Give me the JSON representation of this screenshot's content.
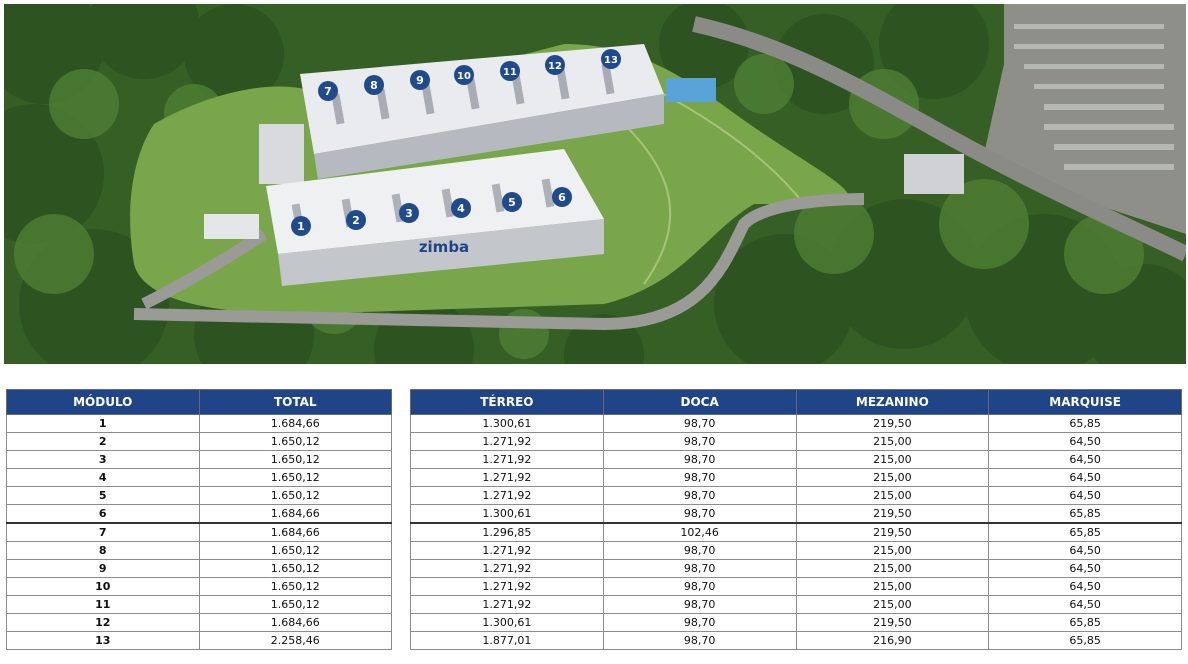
{
  "brand": "zimba",
  "map_labels": [
    "1",
    "2",
    "3",
    "4",
    "5",
    "6",
    "7",
    "8",
    "9",
    "10",
    "11",
    "12",
    "13"
  ],
  "headers_left": [
    "MÓDULO",
    "TOTAL"
  ],
  "headers_right": [
    "TÉRREO",
    "DOCA",
    "MEZANINO",
    "MARQUISE"
  ],
  "rows": [
    {
      "modulo": "1",
      "total": "1.684,66",
      "terreo": "1.300,61",
      "doca": "98,70",
      "mezanino": "219,50",
      "marquise": "65,85"
    },
    {
      "modulo": "2",
      "total": "1.650,12",
      "terreo": "1.271,92",
      "doca": "98,70",
      "mezanino": "215,00",
      "marquise": "64,50"
    },
    {
      "modulo": "3",
      "total": "1.650,12",
      "terreo": "1.271,92",
      "doca": "98,70",
      "mezanino": "215,00",
      "marquise": "64,50"
    },
    {
      "modulo": "4",
      "total": "1.650,12",
      "terreo": "1.271,92",
      "doca": "98,70",
      "mezanino": "215,00",
      "marquise": "64,50"
    },
    {
      "modulo": "5",
      "total": "1.650,12",
      "terreo": "1.271,92",
      "doca": "98,70",
      "mezanino": "215,00",
      "marquise": "64,50"
    },
    {
      "modulo": "6",
      "total": "1.684,66",
      "terreo": "1.300,61",
      "doca": "98,70",
      "mezanino": "219,50",
      "marquise": "65,85"
    },
    {
      "modulo": "7",
      "total": "1.684,66",
      "terreo": "1.296,85",
      "doca": "102,46",
      "mezanino": "219,50",
      "marquise": "65,85"
    },
    {
      "modulo": "8",
      "total": "1.650,12",
      "terreo": "1.271,92",
      "doca": "98,70",
      "mezanino": "215,00",
      "marquise": "64,50"
    },
    {
      "modulo": "9",
      "total": "1.650,12",
      "terreo": "1.271,92",
      "doca": "98,70",
      "mezanino": "215,00",
      "marquise": "64,50"
    },
    {
      "modulo": "10",
      "total": "1.650,12",
      "terreo": "1.271,92",
      "doca": "98,70",
      "mezanino": "215,00",
      "marquise": "64,50"
    },
    {
      "modulo": "11",
      "total": "1.650,12",
      "terreo": "1.271,92",
      "doca": "98,70",
      "mezanino": "215,00",
      "marquise": "64,50"
    },
    {
      "modulo": "12",
      "total": "1.684,66",
      "terreo": "1.300,61",
      "doca": "98,70",
      "mezanino": "219,50",
      "marquise": "65,85"
    },
    {
      "modulo": "13",
      "total": "2.258,46",
      "terreo": "1.877,01",
      "doca": "98,70",
      "mezanino": "216,90",
      "marquise": "65,85"
    }
  ],
  "colors": {
    "header_bg": "#1f4588",
    "marker": "#1f4a8c",
    "forest": "#3d6b2a",
    "grass": "#79a64a"
  }
}
